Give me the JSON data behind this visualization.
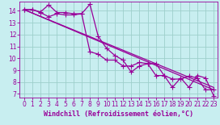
{
  "xlabel": "Windchill (Refroidissement éolien,°C)",
  "xlim": [
    -0.5,
    23.5
  ],
  "ylim": [
    6.7,
    14.8
  ],
  "yticks": [
    7,
    8,
    9,
    10,
    11,
    12,
    13,
    14
  ],
  "xticks": [
    0,
    1,
    2,
    3,
    4,
    5,
    6,
    7,
    8,
    9,
    10,
    11,
    12,
    13,
    14,
    15,
    16,
    17,
    18,
    19,
    20,
    21,
    22,
    23
  ],
  "bg_color": "#c8eef0",
  "grid_color": "#9dcfcc",
  "line_color": "#990099",
  "line1_x": [
    0,
    1,
    2,
    3,
    4,
    5,
    6,
    7,
    8,
    9,
    10,
    11,
    12,
    13,
    14,
    15,
    16,
    17,
    18,
    19,
    20,
    21,
    22,
    23
  ],
  "line1_y": [
    14.1,
    14.1,
    13.9,
    14.5,
    13.85,
    13.85,
    13.75,
    13.75,
    10.55,
    10.35,
    9.85,
    9.85,
    9.35,
    9.35,
    9.65,
    9.55,
    8.55,
    8.55,
    8.25,
    8.25,
    8.5,
    8.35,
    7.35,
    7.35
  ],
  "line2_x": [
    0,
    1,
    2,
    3,
    4,
    5,
    6,
    7,
    8,
    9,
    10,
    11,
    12,
    13,
    14,
    15,
    16,
    17,
    18,
    19,
    20,
    21,
    22,
    23
  ],
  "line2_y": [
    14.1,
    14.1,
    13.85,
    13.5,
    13.75,
    13.65,
    13.65,
    13.75,
    14.55,
    11.85,
    10.85,
    10.25,
    9.85,
    8.85,
    9.35,
    9.55,
    9.55,
    8.55,
    7.55,
    8.35,
    7.55,
    8.55,
    8.35,
    6.85
  ],
  "trend1_x": [
    0,
    23
  ],
  "trend1_y": [
    14.1,
    7.35
  ],
  "trend2_x": [
    0,
    23
  ],
  "trend2_y": [
    14.1,
    7.55
  ],
  "marker": "+",
  "markersize": 4.0,
  "linewidth": 0.9,
  "xlabel_fontsize": 6.0,
  "tick_fontsize": 5.5,
  "line_color2": "#990099"
}
